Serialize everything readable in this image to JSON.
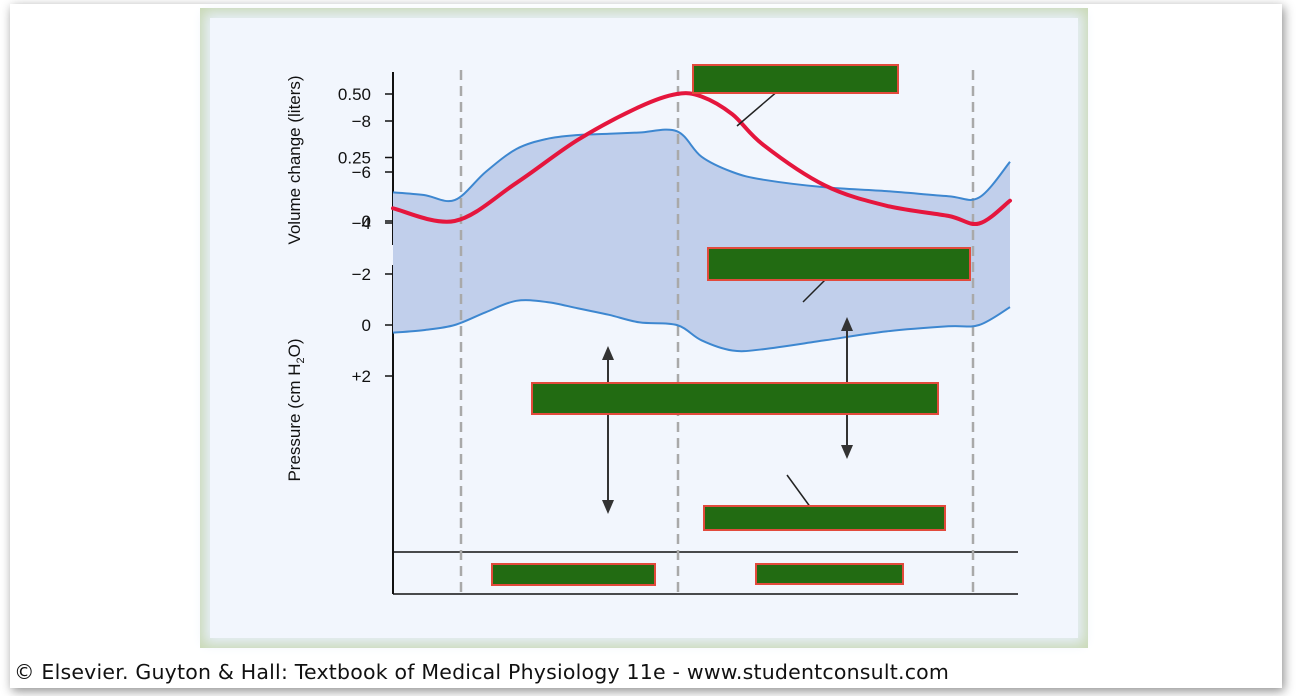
{
  "chart_data": [
    {
      "type": "line",
      "ylabel": "Volume change (liters)",
      "yticks": [
        "0",
        "0.25",
        "0.50"
      ],
      "ylim": [
        -0.1,
        0.6
      ],
      "xlim": [
        0,
        1
      ],
      "series": [
        {
          "x": [
            0,
            0.1,
            0.2,
            0.3,
            0.4,
            0.46,
            0.5,
            0.55,
            0.6,
            0.7,
            0.8,
            0.9,
            0.95,
            1.0
          ],
          "y": [
            0.05,
            0.0,
            0.15,
            0.32,
            0.45,
            0.5,
            0.49,
            0.42,
            0.3,
            0.14,
            0.06,
            0.02,
            -0.01,
            0.08
          ]
        }
      ],
      "color": "#e5163d",
      "annotation_box": "redacted label"
    },
    {
      "type": "area",
      "ylabel": "Pressure (cm H2O)",
      "yticks": [
        "−8",
        "−6",
        "−4",
        "−2",
        "0",
        "+2"
      ],
      "ylim": [
        -8.8,
        2.3
      ],
      "xlim": [
        0,
        1
      ],
      "series": [
        {
          "x": [
            0,
            0.05,
            0.1,
            0.15,
            0.2,
            0.25,
            0.3,
            0.35,
            0.4,
            0.46,
            0.5,
            0.55,
            0.6,
            0.7,
            0.8,
            0.9,
            0.95,
            1.0
          ],
          "y": [
            0.3,
            0.2,
            0.0,
            -0.5,
            -0.95,
            -0.9,
            -0.65,
            -0.4,
            -0.1,
            0.0,
            0.6,
            1.0,
            0.95,
            0.6,
            0.25,
            0.05,
            0.0,
            -0.7
          ]
        },
        {
          "x": [
            0,
            0.05,
            0.1,
            0.15,
            0.2,
            0.25,
            0.3,
            0.35,
            0.4,
            0.46,
            0.5,
            0.55,
            0.6,
            0.7,
            0.8,
            0.9,
            0.95,
            1.0
          ],
          "y": [
            -5.2,
            -5.1,
            -4.9,
            -6.0,
            -6.9,
            -7.3,
            -7.45,
            -7.5,
            -7.55,
            -7.6,
            -6.6,
            -6.0,
            -5.7,
            -5.4,
            -5.25,
            -5.05,
            -5.0,
            -6.4
          ]
        }
      ],
      "line_color": "#3d87d0",
      "fill_color": "#c1cfeb",
      "phases": [
        "redacted label",
        "redacted label"
      ]
    }
  ],
  "footer": {
    "credit": "© Elsevier. Guyton & Hall: Textbook of Medical Physiology 11e - www.studentconsult.com"
  }
}
